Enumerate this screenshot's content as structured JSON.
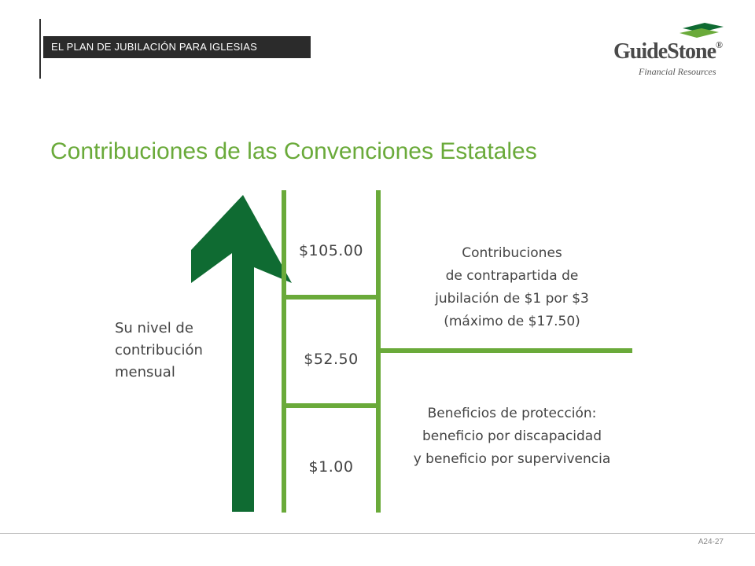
{
  "header": {
    "section_label": "EL PLAN DE JUBILACIÓN PARA IGLESIAS"
  },
  "logo": {
    "name": "GuideStone",
    "registered": "®",
    "tagline": "Financial Resources"
  },
  "page_title": "Contribuciones de las Convenciones Estatales",
  "diagram": {
    "side_label": [
      "Su nivel de",
      "contribución",
      "mensual"
    ],
    "levels": [
      {
        "amount": "$105.00"
      },
      {
        "amount": "$52.50"
      },
      {
        "amount": "$1.00"
      }
    ],
    "upper_box": [
      "Contribuciones",
      "de contrapartida de",
      "jubilación de $1 por $3",
      "(máximo de $17.50)"
    ],
    "lower_box": [
      "Beneficios de protección:",
      "beneficio por discapacidad",
      "y beneficio por supervivencia"
    ]
  },
  "footer": {
    "page_code": "A24-27"
  },
  "colors": {
    "arrow": "#0f6b32",
    "lines": "#6aaa3a",
    "title": "#6aaa3a",
    "header_bg": "#2b2b2b",
    "text": "#444444"
  }
}
